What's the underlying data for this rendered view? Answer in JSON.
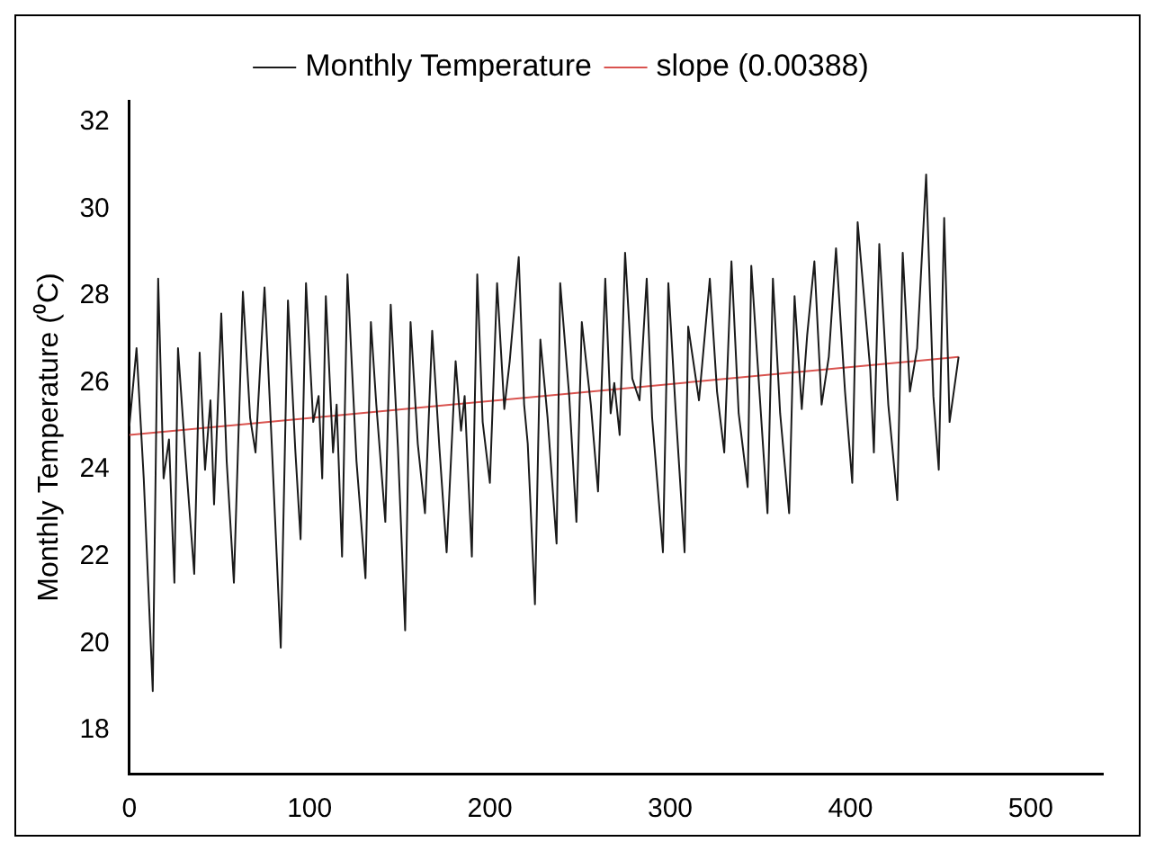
{
  "chart_data": {
    "type": "line",
    "ylabel": "Monthly Temperature (⁰C)",
    "xlim": [
      0,
      540
    ],
    "ylim": [
      17,
      32.5
    ],
    "xticks": [
      0,
      100,
      200,
      300,
      400,
      500
    ],
    "yticks": [
      18,
      20,
      22,
      24,
      26,
      28,
      30,
      32
    ],
    "grid": false,
    "legend": "top",
    "marker": "none",
    "line_style": "solid",
    "series": [
      {
        "name": "Monthly Temperature",
        "color": "#1a1a1a",
        "x": [
          0,
          4,
          8,
          13,
          16,
          19,
          22,
          25,
          27,
          31,
          36,
          39,
          42,
          45,
          47,
          51,
          54,
          58,
          63,
          67,
          70,
          75,
          79,
          84,
          88,
          92,
          95,
          98,
          102,
          105,
          107,
          109,
          113,
          115,
          118,
          121,
          126,
          131,
          134,
          137,
          142,
          145,
          149,
          153,
          156,
          160,
          164,
          168,
          172,
          176,
          181,
          184,
          186,
          190,
          193,
          196,
          200,
          204,
          208,
          211,
          216,
          219,
          221,
          225,
          228,
          232,
          237,
          239,
          244,
          248,
          251,
          256,
          260,
          264,
          267,
          269,
          272,
          275,
          279,
          283,
          287,
          290,
          296,
          299,
          303,
          308,
          310,
          316,
          322,
          326,
          330,
          334,
          338,
          343,
          345,
          350,
          354,
          357,
          361,
          366,
          369,
          373,
          376,
          380,
          384,
          388,
          392,
          397,
          401,
          404,
          411,
          413,
          416,
          421,
          426,
          429,
          433,
          437,
          442,
          446,
          449,
          452,
          455,
          460
        ],
        "values": [
          25,
          26.8,
          23.8,
          18.9,
          28.4,
          23.8,
          24.7,
          21.4,
          26.8,
          24.4,
          21.6,
          26.7,
          24,
          25.6,
          23.2,
          27.6,
          24.2,
          21.4,
          28.1,
          25.2,
          24.4,
          28.2,
          24.6,
          19.9,
          27.9,
          24.5,
          22.4,
          28.3,
          25.1,
          25.7,
          23.8,
          28,
          24.4,
          25.5,
          22,
          28.5,
          24.2,
          21.5,
          27.4,
          25.5,
          22.8,
          27.8,
          24.5,
          20.3,
          27.4,
          24.6,
          23,
          27.2,
          24.5,
          22.1,
          26.5,
          24.9,
          25.7,
          22,
          28.5,
          25.1,
          23.7,
          28.3,
          25.4,
          26.5,
          28.9,
          25.5,
          24.6,
          20.9,
          27,
          25.2,
          22.3,
          28.3,
          25.7,
          22.8,
          27.4,
          25.5,
          23.5,
          28.4,
          25.3,
          26,
          24.8,
          29,
          26.1,
          25.6,
          28.4,
          25.2,
          22.1,
          28.3,
          25.4,
          22.1,
          27.3,
          25.6,
          28.4,
          25.8,
          24.4,
          28.8,
          25.3,
          23.6,
          28.7,
          25.5,
          23,
          28.4,
          25.3,
          23,
          28,
          25.4,
          27.1,
          28.8,
          25.5,
          26.6,
          29.1,
          25.8,
          23.7,
          29.7,
          26.3,
          24.4,
          29.2,
          25.5,
          23.3,
          29,
          25.8,
          26.8,
          30.8,
          25.7,
          24,
          29.8,
          25.1,
          26.6
        ]
      },
      {
        "name": "slope (0.00388)",
        "color": "#d9534f",
        "x": [
          0,
          460
        ],
        "values": [
          24.8,
          26.6
        ]
      }
    ]
  }
}
